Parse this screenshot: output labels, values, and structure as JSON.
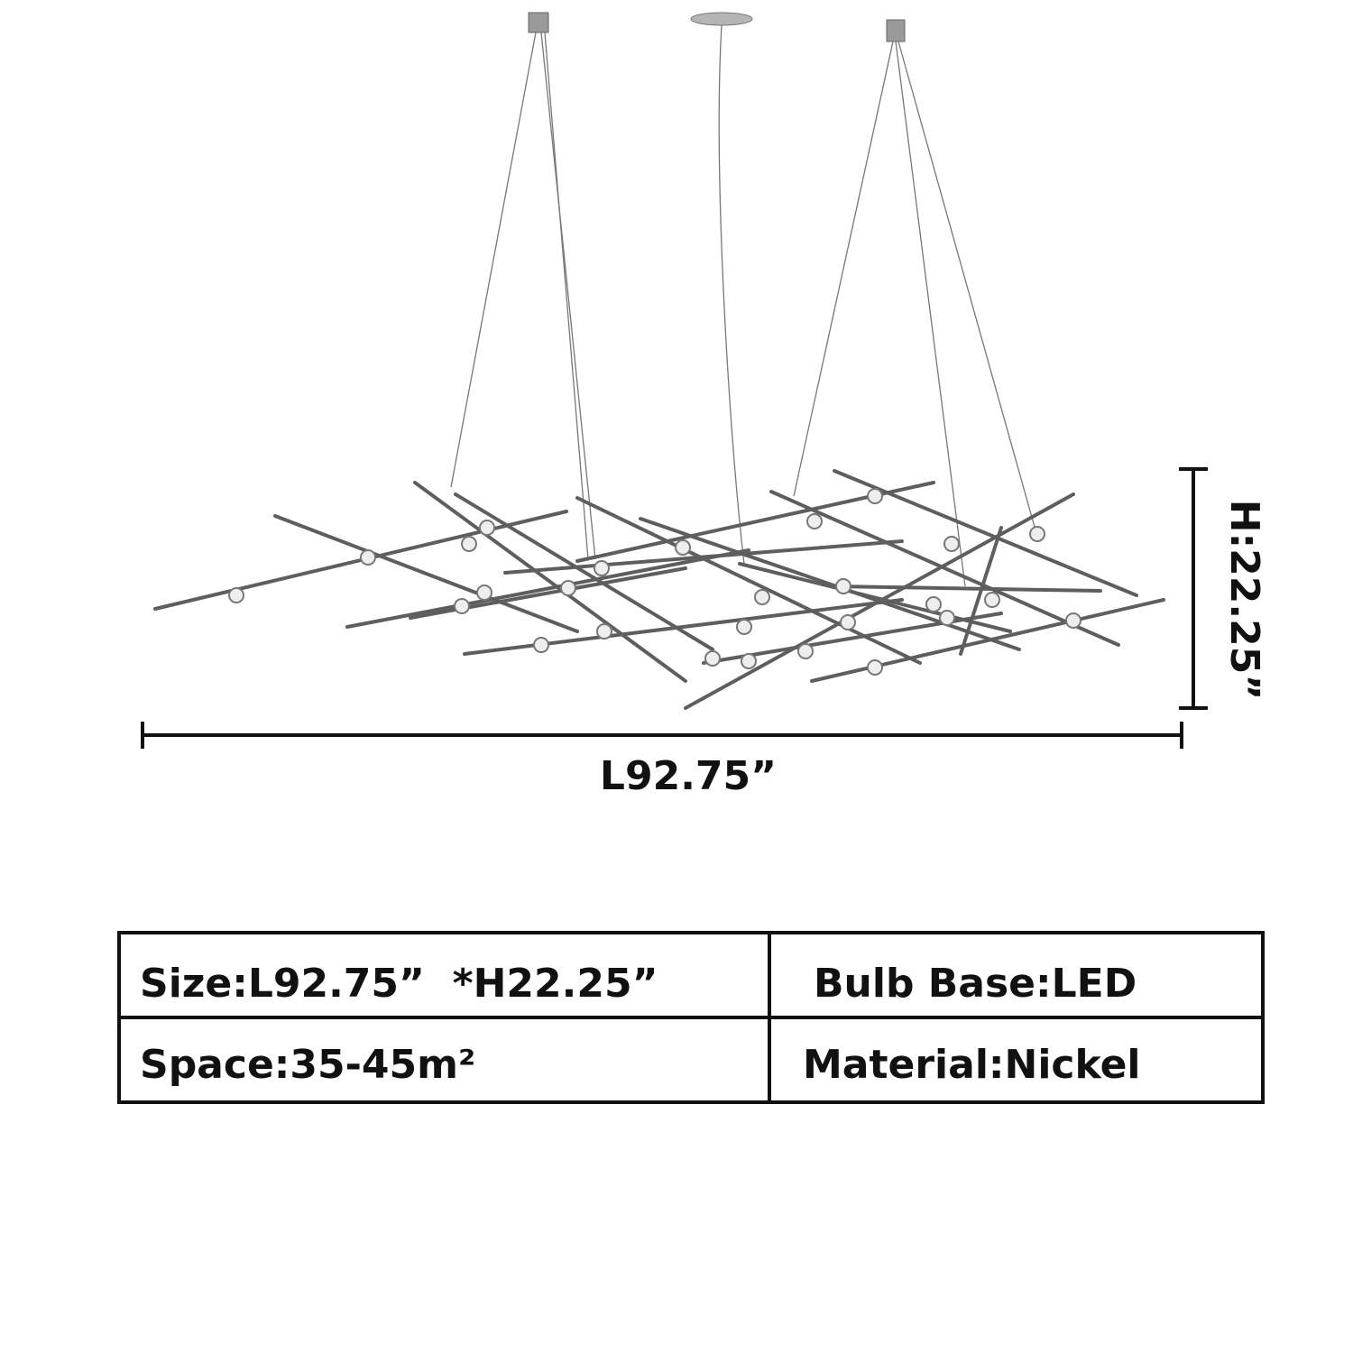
{
  "dimensions": {
    "length": "L92.75”",
    "height": "H:22.25”"
  },
  "table": {
    "rows": [
      [
        "Size:L92.75”  *H22.25”",
        "Bulb Base:LED"
      ],
      [
        "Space:35-45m²",
        "Material:Nickel"
      ]
    ]
  }
}
